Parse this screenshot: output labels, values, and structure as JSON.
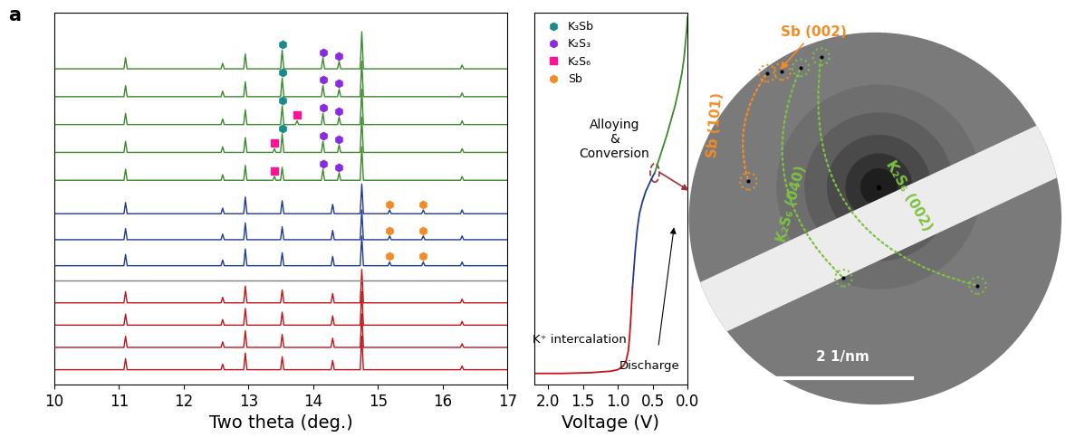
{
  "panel_label": "a",
  "chart_data": [
    {
      "type": "line",
      "x_label": "Two theta (deg.)",
      "xlim": [
        10,
        17
      ],
      "xticks": [
        10,
        11,
        12,
        13,
        14,
        15,
        16,
        17
      ],
      "ylim": [
        0,
        100
      ],
      "tick_labels": "x",
      "separator": 28,
      "series": [
        {
          "color": "#c0141b",
          "baseline": 4,
          "peaks": [
            [
              11.1,
              3
            ],
            [
              12.6,
              1.5
            ],
            [
              12.95,
              4.5
            ],
            [
              13.52,
              3.5
            ],
            [
              14.3,
              2.5
            ],
            [
              14.75,
              9
            ],
            [
              16.3,
              1
            ]
          ]
        },
        {
          "color": "#c0141b",
          "baseline": 10,
          "peaks": [
            [
              11.1,
              3
            ],
            [
              12.6,
              1.5
            ],
            [
              12.95,
              4.5
            ],
            [
              13.52,
              3.5
            ],
            [
              14.3,
              2.5
            ],
            [
              14.75,
              9
            ],
            [
              16.3,
              1
            ]
          ]
        },
        {
          "color": "#c0141b",
          "baseline": 16,
          "peaks": [
            [
              11.1,
              3
            ],
            [
              12.6,
              1.5
            ],
            [
              12.95,
              4.5
            ],
            [
              13.52,
              3.5
            ],
            [
              14.3,
              2.5
            ],
            [
              14.75,
              9
            ],
            [
              16.3,
              1
            ]
          ]
        },
        {
          "color": "#c0141b",
          "baseline": 22,
          "peaks": [
            [
              11.1,
              3
            ],
            [
              12.6,
              1.5
            ],
            [
              12.95,
              4.5
            ],
            [
              13.52,
              3.5
            ],
            [
              14.3,
              2.5
            ],
            [
              14.75,
              9
            ],
            [
              16.3,
              1
            ]
          ]
        },
        {
          "color": "#1f3a93",
          "baseline": 32,
          "peaks": [
            [
              11.1,
              3
            ],
            [
              12.6,
              1.5
            ],
            [
              12.95,
              4.5
            ],
            [
              13.52,
              3.5
            ],
            [
              14.3,
              2.5
            ],
            [
              14.75,
              8
            ],
            [
              15.18,
              1
            ],
            [
              15.7,
              1
            ],
            [
              16.3,
              1
            ]
          ]
        },
        {
          "color": "#1f3a93",
          "baseline": 39,
          "peaks": [
            [
              11.1,
              3
            ],
            [
              12.6,
              1.5
            ],
            [
              12.95,
              4.5
            ],
            [
              13.52,
              3.5
            ],
            [
              14.3,
              2.5
            ],
            [
              14.75,
              8
            ],
            [
              15.18,
              1
            ],
            [
              15.7,
              1
            ],
            [
              16.3,
              1
            ]
          ]
        },
        {
          "color": "#1f3a93",
          "baseline": 46,
          "peaks": [
            [
              11.1,
              3
            ],
            [
              12.6,
              1.5
            ],
            [
              12.95,
              4.5
            ],
            [
              13.52,
              3.5
            ],
            [
              14.3,
              2.5
            ],
            [
              14.75,
              8
            ],
            [
              15.18,
              1
            ],
            [
              15.7,
              1
            ],
            [
              16.3,
              1
            ]
          ]
        },
        {
          "color": "#3a8a2a",
          "baseline": 55,
          "peaks": [
            [
              11.1,
              3
            ],
            [
              12.6,
              1.5
            ],
            [
              12.95,
              4
            ],
            [
              13.4,
              1
            ],
            [
              13.52,
              3.5
            ],
            [
              14.15,
              3
            ],
            [
              14.4,
              2
            ],
            [
              14.75,
              9
            ],
            [
              16.3,
              1
            ]
          ]
        },
        {
          "color": "#3a8a2a",
          "baseline": 62.5,
          "peaks": [
            [
              11.1,
              3
            ],
            [
              12.6,
              1.5
            ],
            [
              12.95,
              4
            ],
            [
              13.4,
              1
            ],
            [
              13.52,
              5
            ],
            [
              14.15,
              3
            ],
            [
              14.4,
              2
            ],
            [
              14.75,
              9.5
            ],
            [
              16.3,
              1
            ]
          ]
        },
        {
          "color": "#3a8a2a",
          "baseline": 70,
          "peaks": [
            [
              11.1,
              3
            ],
            [
              12.6,
              1.5
            ],
            [
              12.95,
              4
            ],
            [
              13.52,
              5
            ],
            [
              13.75,
              1
            ],
            [
              14.15,
              3
            ],
            [
              14.4,
              2
            ],
            [
              14.75,
              9.5
            ],
            [
              16.3,
              1
            ]
          ]
        },
        {
          "color": "#3a8a2a",
          "baseline": 77.5,
          "peaks": [
            [
              11.1,
              3
            ],
            [
              12.6,
              1.5
            ],
            [
              12.95,
              4
            ],
            [
              13.52,
              5
            ],
            [
              14.15,
              3
            ],
            [
              14.4,
              2
            ],
            [
              14.75,
              9.5
            ],
            [
              16.3,
              1
            ]
          ]
        },
        {
          "color": "#3a8a2a",
          "baseline": 85,
          "peaks": [
            [
              11.1,
              3
            ],
            [
              12.6,
              1.5
            ],
            [
              12.95,
              4
            ],
            [
              13.52,
              5
            ],
            [
              14.15,
              3
            ],
            [
              14.4,
              2
            ],
            [
              14.75,
              10
            ],
            [
              16.3,
              1
            ]
          ]
        }
      ],
      "phases": [
        {
          "name": "K₃Sb",
          "color": "#1a8a8a",
          "marker": "hexagon",
          "points": [
            [
              13.52,
              69
            ],
            [
              13.52,
              76.5
            ],
            [
              13.52,
              84
            ],
            [
              13.52,
              91.5
            ]
          ]
        },
        {
          "name": "K₂S₃",
          "color": "#8a2be2",
          "marker": "hexagon",
          "points": [
            [
              14.15,
              59.5
            ],
            [
              14.4,
              58.5
            ],
            [
              14.15,
              67
            ],
            [
              14.4,
              66
            ],
            [
              14.15,
              74.5
            ],
            [
              14.4,
              73.5
            ],
            [
              14.15,
              82
            ],
            [
              14.4,
              81
            ],
            [
              14.15,
              89.5
            ],
            [
              14.4,
              88.5
            ]
          ]
        },
        {
          "name": "K₂S₆",
          "color": "#ff1493",
          "marker": "square",
          "points": [
            [
              13.4,
              57.5
            ],
            [
              13.4,
              65
            ],
            [
              13.75,
              72.5
            ]
          ]
        },
        {
          "name": "Sb",
          "color": "#f28c28",
          "marker": "hexagon",
          "points": [
            [
              15.18,
              34.5
            ],
            [
              15.7,
              34.5
            ],
            [
              15.18,
              41.5
            ],
            [
              15.7,
              41.5
            ],
            [
              15.18,
              48.5
            ],
            [
              15.7,
              48.5
            ]
          ]
        }
      ]
    },
    {
      "type": "line",
      "x_label": "Voltage (V)",
      "xlim": [
        2.2,
        0.0
      ],
      "xticks": [
        2.0,
        1.5,
        1.0,
        0.5,
        0.0
      ],
      "ylim": [
        0,
        100
      ],
      "tick_labels": "x",
      "legend": "upper left",
      "series": [
        {
          "color": "#c0141b",
          "x": [
            2.2,
            1.8,
            1.4,
            1.1,
            1.0,
            0.92,
            0.88,
            0.85,
            0.83,
            0.81,
            0.79
          ],
          "values": [
            3,
            3,
            3.2,
            3.6,
            4,
            5,
            6.5,
            9,
            13,
            19,
            26
          ]
        },
        {
          "color": "#1f3a93",
          "x": [
            0.79,
            0.77,
            0.75,
            0.72,
            0.69,
            0.65,
            0.6,
            0.55,
            0.5,
            0.47
          ],
          "values": [
            26,
            31,
            36,
            42,
            46,
            49,
            52,
            54,
            56,
            57
          ]
        },
        {
          "color": "#3a8a2a",
          "x": [
            0.47,
            0.42,
            0.36,
            0.3,
            0.24,
            0.18,
            0.12,
            0.08,
            0.05,
            0.03,
            0.01,
            0.0
          ],
          "values": [
            57,
            60,
            63.5,
            67,
            71,
            75,
            80,
            84,
            88,
            92,
            96,
            99
          ]
        }
      ],
      "annotations": [
        "Alloying\n&\nConversion",
        "K⁺ intercalation",
        "Discharge"
      ],
      "highlight": {
        "x": 0.47,
        "y": 57
      }
    }
  ],
  "saed": {
    "labels": [
      {
        "text": "Sb (002)",
        "color": "#f28c28"
      },
      {
        "text": "Sb (101)",
        "color": "#f28c28"
      },
      {
        "text": "K₂S₆ (040)",
        "color": "#7dc242"
      },
      {
        "text": "K₂S₆ (002)",
        "color": "#7dc242"
      }
    ],
    "scale_bar": "2 1/nm"
  }
}
